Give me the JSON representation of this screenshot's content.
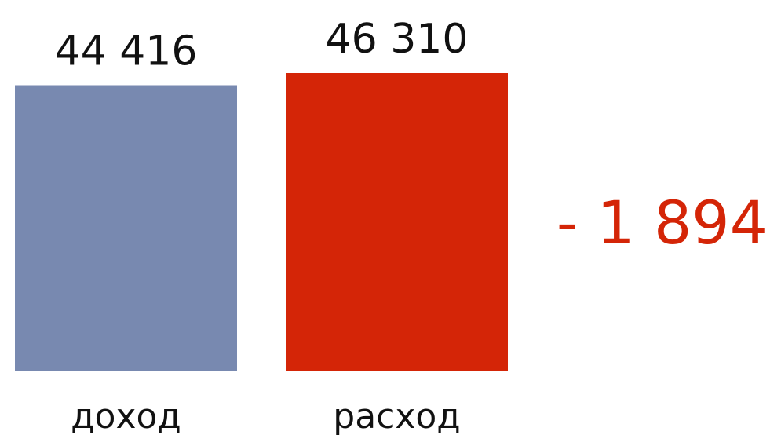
{
  "chart_data": {
    "type": "bar",
    "categories": [
      "доход",
      "расход"
    ],
    "values": [
      44416,
      46310
    ],
    "value_labels": [
      "44 416",
      "46 310"
    ],
    "colors": [
      "#7889B0",
      "#D42507"
    ],
    "difference": {
      "value": -1894,
      "label": "- 1 894",
      "color": "#D42507"
    },
    "title": "",
    "xlabel": "",
    "ylabel": "",
    "ylim": [
      0,
      46310
    ],
    "grid": false,
    "legend": "none"
  }
}
